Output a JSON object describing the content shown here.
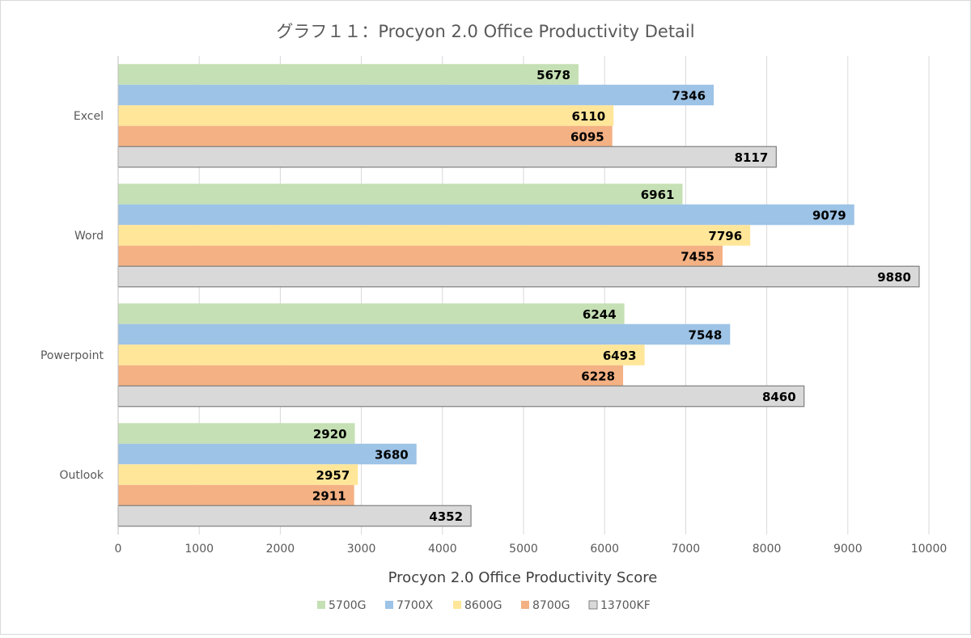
{
  "chart_data": {
    "type": "bar",
    "orientation": "horizontal",
    "title": "グラフ１１：Procyon 2.0 Office Productivity Detail",
    "xlabel": "Procyon 2.0 Office Productivity Score",
    "ylabel": "",
    "xlim": [
      0,
      10000
    ],
    "xticks": [
      0,
      1000,
      2000,
      3000,
      4000,
      5000,
      6000,
      7000,
      8000,
      9000,
      10000
    ],
    "grid": true,
    "legend_position": "bottom",
    "categories": [
      "Excel",
      "Word",
      "Powerpoint",
      "Outlook"
    ],
    "series": [
      {
        "name": "5700G",
        "color": "#c5e0b4",
        "values": [
          5678,
          6961,
          6244,
          2920
        ]
      },
      {
        "name": "7700X",
        "color": "#9dc3e6",
        "values": [
          7346,
          9079,
          7548,
          3680
        ]
      },
      {
        "name": "8600G",
        "color": "#ffe699",
        "values": [
          6110,
          7796,
          6493,
          2957
        ]
      },
      {
        "name": "8700G",
        "color": "#f4b183",
        "values": [
          6095,
          7455,
          6228,
          2911
        ]
      },
      {
        "name": "13700KF",
        "color": "#d9d9d9",
        "values": [
          8117,
          9880,
          8460,
          4352
        ]
      }
    ]
  }
}
